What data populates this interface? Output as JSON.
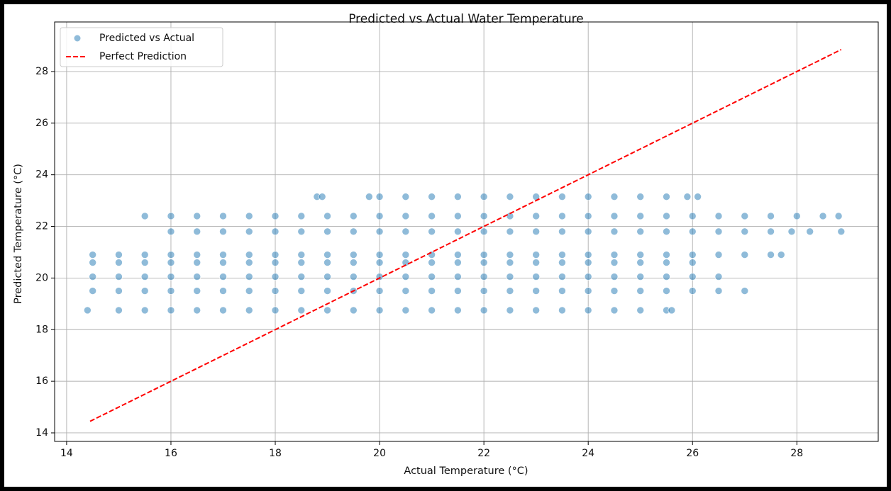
{
  "chart_data": {
    "type": "scatter",
    "title": "Predicted vs Actual Water Temperature",
    "x_label": "Actual Temperature (°C)",
    "y_label": "Predicted Temperature (°C)",
    "xlim": [
      13.77,
      29.56
    ],
    "ylim": [
      13.67,
      29.92
    ],
    "xticks": [
      14,
      16,
      18,
      20,
      22,
      24,
      26,
      28
    ],
    "yticks": [
      14,
      16,
      18,
      20,
      22,
      24,
      26,
      28
    ],
    "grid": true,
    "legend": "upper-left",
    "series": [
      {
        "name": "Predicted vs Actual",
        "type": "scatter",
        "color": "#1f77b4",
        "x": [
          18.8,
          18.9,
          19.8,
          20.0,
          20.5,
          21.0,
          21.5,
          22.0,
          22.5,
          23.0,
          23.5,
          24.0,
          24.5,
          25.0,
          25.5,
          25.9,
          26.1,
          15.5,
          16,
          16.5,
          17,
          17.5,
          18,
          18.5,
          19,
          19.5,
          20,
          20.5,
          21,
          21.5,
          22,
          22.5,
          23,
          23.5,
          24,
          24.5,
          25,
          25.5,
          26,
          26.5,
          27,
          27.5,
          28,
          28.5,
          28.8,
          16,
          16.5,
          17,
          17.5,
          18,
          18.5,
          19,
          19.5,
          20,
          20.5,
          21,
          21.5,
          22,
          22.5,
          23,
          23.5,
          24,
          24.5,
          25,
          25.5,
          26,
          26.5,
          27,
          27.5,
          27.9,
          28.25,
          28.85,
          14.5,
          15,
          15.5,
          16,
          16.5,
          17,
          17.5,
          18,
          18.5,
          19,
          19.5,
          20,
          20.5,
          21,
          21.5,
          22,
          22.5,
          23,
          23.5,
          24,
          24.5,
          25,
          25.5,
          26,
          26.5,
          27,
          27.5,
          27.7,
          14.5,
          15,
          15.5,
          16,
          16.5,
          17,
          17.5,
          18,
          18.5,
          19,
          19.5,
          20,
          20.5,
          21,
          21.5,
          22,
          22.5,
          23,
          23.5,
          24,
          24.5,
          25,
          25.5,
          26,
          14.5,
          15,
          15.5,
          16,
          16.5,
          17,
          17.5,
          18,
          18.5,
          19,
          19.5,
          20,
          20.5,
          21,
          21.5,
          22,
          22.5,
          23,
          23.5,
          24,
          24.5,
          25,
          25.5,
          26,
          26.5,
          14.5,
          15,
          15.5,
          16,
          16.5,
          17,
          17.5,
          18,
          18.5,
          19,
          19.5,
          20,
          20.5,
          21,
          21.5,
          22,
          22.5,
          23,
          23.5,
          24,
          24.5,
          25,
          25.5,
          26,
          26.5,
          27,
          14.4,
          15,
          15.5,
          16,
          16.5,
          17,
          17.5,
          18,
          18.5,
          19,
          19.5,
          20,
          20.5,
          21,
          21.5,
          22,
          22.5,
          23,
          23.5,
          24,
          24.5,
          25,
          25.5,
          25.6
        ],
        "values": [
          23.15,
          23.15,
          23.15,
          23.15,
          23.15,
          23.15,
          23.15,
          23.15,
          23.15,
          23.15,
          23.15,
          23.15,
          23.15,
          23.15,
          23.15,
          23.15,
          23.15,
          22.4,
          22.4,
          22.4,
          22.4,
          22.4,
          22.4,
          22.4,
          22.4,
          22.4,
          22.4,
          22.4,
          22.4,
          22.4,
          22.4,
          22.4,
          22.4,
          22.4,
          22.4,
          22.4,
          22.4,
          22.4,
          22.4,
          22.4,
          22.4,
          22.4,
          22.4,
          22.4,
          22.4,
          21.8,
          21.8,
          21.8,
          21.8,
          21.8,
          21.8,
          21.8,
          21.8,
          21.8,
          21.8,
          21.8,
          21.8,
          21.8,
          21.8,
          21.8,
          21.8,
          21.8,
          21.8,
          21.8,
          21.8,
          21.8,
          21.8,
          21.8,
          21.8,
          21.8,
          21.8,
          21.8,
          20.9,
          20.9,
          20.9,
          20.9,
          20.9,
          20.9,
          20.9,
          20.9,
          20.9,
          20.9,
          20.9,
          20.9,
          20.9,
          20.9,
          20.9,
          20.9,
          20.9,
          20.9,
          20.9,
          20.9,
          20.9,
          20.9,
          20.9,
          20.9,
          20.9,
          20.9,
          20.9,
          20.9,
          20.6,
          20.6,
          20.6,
          20.6,
          20.6,
          20.6,
          20.6,
          20.6,
          20.6,
          20.6,
          20.6,
          20.6,
          20.6,
          20.6,
          20.6,
          20.6,
          20.6,
          20.6,
          20.6,
          20.6,
          20.6,
          20.6,
          20.6,
          20.6,
          20.05,
          20.05,
          20.05,
          20.05,
          20.05,
          20.05,
          20.05,
          20.05,
          20.05,
          20.05,
          20.05,
          20.05,
          20.05,
          20.05,
          20.05,
          20.05,
          20.05,
          20.05,
          20.05,
          20.05,
          20.05,
          20.05,
          20.05,
          20.05,
          20.05,
          19.5,
          19.5,
          19.5,
          19.5,
          19.5,
          19.5,
          19.5,
          19.5,
          19.5,
          19.5,
          19.5,
          19.5,
          19.5,
          19.5,
          19.5,
          19.5,
          19.5,
          19.5,
          19.5,
          19.5,
          19.5,
          19.5,
          19.5,
          19.5,
          19.5,
          19.5,
          18.75,
          18.75,
          18.75,
          18.75,
          18.75,
          18.75,
          18.75,
          18.75,
          18.75,
          18.75,
          18.75,
          18.75,
          18.75,
          18.75,
          18.75,
          18.75,
          18.75,
          18.75,
          18.75,
          18.75,
          18.75,
          18.75,
          18.75,
          18.75
        ]
      },
      {
        "name": "Perfect Prediction",
        "type": "line",
        "color": "#ff0000",
        "dashed": true,
        "x": [
          14.45,
          28.85
        ],
        "values": [
          14.45,
          28.85
        ]
      }
    ]
  }
}
